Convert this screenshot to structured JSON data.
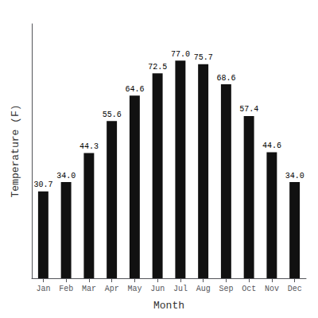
{
  "chart_data": {
    "type": "bar",
    "categories": [
      "Jan",
      "Feb",
      "Mar",
      "Apr",
      "May",
      "Jun",
      "Jul",
      "Aug",
      "Sep",
      "Oct",
      "Nov",
      "Dec"
    ],
    "values": [
      30.7,
      34.0,
      44.3,
      55.6,
      64.6,
      72.5,
      77.0,
      75.7,
      68.6,
      57.4,
      44.6,
      34.0
    ],
    "value_labels": [
      "30.7",
      "34.0",
      "44.3",
      "55.6",
      "64.6",
      "72.5",
      "77.0",
      "75.7",
      "68.6",
      "57.4",
      "44.6",
      "34.0"
    ],
    "data_labels": true,
    "color": "#111111",
    "xlabel": "Month",
    "ylabel": "Temperature (F)",
    "ylim": [
      0,
      90
    ],
    "grid": false,
    "tick_labels": "x"
  }
}
